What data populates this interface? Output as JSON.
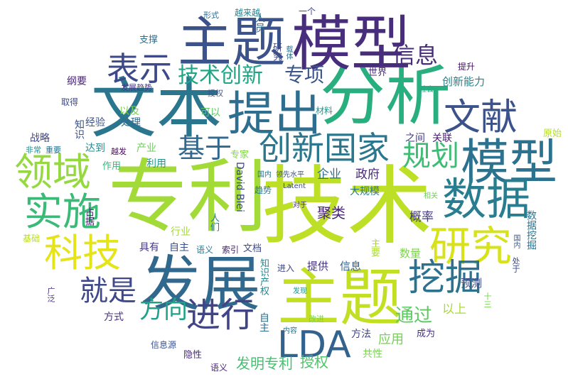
{
  "title": "",
  "words": [
    {
      "text": "专利",
      "color": "#a2da37"
    },
    {
      "text": "技术",
      "color": "#bddf26"
    },
    {
      "text": "文本",
      "color": "#2a768e"
    },
    {
      "text": "分析",
      "color": "#29af7f"
    },
    {
      "text": "主题",
      "color": "#3b528b"
    },
    {
      "text": "模型",
      "color": "#472d7b"
    },
    {
      "text": "模型",
      "color": "#2c728e"
    },
    {
      "text": "主题",
      "color": "#c2df23"
    },
    {
      "text": "发展",
      "color": "#31688e"
    },
    {
      "text": "提出",
      "color": "#2e6e8e"
    },
    {
      "text": "数据",
      "color": "#287d8e"
    },
    {
      "text": "研究",
      "color": "#d8e219"
    },
    {
      "text": "创新国家",
      "color": "#2a778e"
    },
    {
      "text": "领域",
      "color": "#95d840"
    },
    {
      "text": "科技",
      "color": "#e5e419"
    },
    {
      "text": "实施",
      "color": "#3aba76"
    },
    {
      "text": "表示",
      "color": "#3e4989"
    },
    {
      "text": "文献",
      "color": "#3b528b"
    },
    {
      "text": "挖掘",
      "color": "#2c728e"
    },
    {
      "text": "进行",
      "color": "#414487"
    },
    {
      "text": "LDA",
      "color": "#33638d"
    },
    {
      "text": "基于",
      "color": "#31688e"
    },
    {
      "text": "规划",
      "color": "#3dbc74"
    },
    {
      "text": "就是",
      "color": "#3f4889"
    },
    {
      "text": "方向",
      "color": "#1fa188"
    },
    {
      "text": "信息",
      "color": "#472c7a"
    },
    {
      "text": "技术创新",
      "color": "#20a486"
    },
    {
      "text": "专项",
      "color": "#3a548c"
    },
    {
      "text": "通过",
      "color": "#5ec962"
    },
    {
      "text": "发明专利",
      "color": "#45bf70"
    },
    {
      "text": "授权",
      "color": "#4ec36b"
    },
    {
      "text": "以上",
      "color": "#a8db34"
    },
    {
      "text": "预测",
      "color": "#3e4a89"
    },
    {
      "text": "应用",
      "color": "#75d054"
    },
    {
      "text": "方法",
      "color": "#404588"
    },
    {
      "text": "共性",
      "color": "#7ad151"
    },
    {
      "text": "成为",
      "color": "#46327e"
    },
    {
      "text": "提供",
      "color": "#46337f"
    },
    {
      "text": "信息",
      "color": "#355f8d"
    },
    {
      "text": "聚类",
      "color": "#482475"
    },
    {
      "text": "概率",
      "color": "#443983"
    },
    {
      "text": "企业",
      "color": "#2e6e8e"
    },
    {
      "text": "政府",
      "color": "#482878"
    },
    {
      "text": "大规模",
      "color": "#2a778e"
    },
    {
      "text": "数量",
      "color": "#7fd34e"
    },
    {
      "text": "主要",
      "color": "#addc30"
    },
    {
      "text": "关联",
      "color": "#482173"
    },
    {
      "text": "之间",
      "color": "#433e85"
    },
    {
      "text": "原始",
      "color": "#b5de2b"
    },
    {
      "text": "创新能力",
      "color": "#26828e"
    },
    {
      "text": "世界",
      "color": "#482979"
    },
    {
      "text": "提升",
      "color": "#471063"
    },
    {
      "text": "社会",
      "color": "#22a884"
    },
    {
      "text": "材料",
      "color": "#21918c"
    },
    {
      "text": "以及",
      "color": "#7ad151"
    },
    {
      "text": "可以",
      "color": "#5ec962"
    },
    {
      "text": "经验",
      "color": "#3b528b"
    },
    {
      "text": "处理",
      "color": "#31688e"
    },
    {
      "text": "战略",
      "color": "#404688"
    },
    {
      "text": "非常",
      "color": "#21918c"
    },
    {
      "text": "重要",
      "color": "#2c728e"
    },
    {
      "text": "达到",
      "color": "#238a8d"
    },
    {
      "text": "越发",
      "color": "#46085c"
    },
    {
      "text": "产业",
      "color": "#6ccd5a"
    },
    {
      "text": "作用",
      "color": "#37b878"
    },
    {
      "text": "利用",
      "color": "#1f968b"
    },
    {
      "text": "专家",
      "color": "#84d44b"
    },
    {
      "text": "行业",
      "color": "#a5db36"
    },
    {
      "text": "具有",
      "color": "#443983"
    },
    {
      "text": "自主",
      "color": "#3b528b"
    },
    {
      "text": "语义",
      "color": "#2a788e"
    },
    {
      "text": "索引",
      "color": "#482475"
    },
    {
      "text": "文档",
      "color": "#3e4989"
    },
    {
      "text": "进入",
      "color": "#3f4788"
    },
    {
      "text": "发现",
      "color": "#21918c"
    },
    {
      "text": "方式",
      "color": "#46327e"
    },
    {
      "text": "信息源",
      "color": "#3b528b"
    },
    {
      "text": "隐性",
      "color": "#472c7a"
    },
    {
      "text": "语义",
      "color": "#482677"
    },
    {
      "text": "内容",
      "color": "#2c728e"
    },
    {
      "text": "改进",
      "color": "#7ad151"
    },
    {
      "text": "趋势",
      "color": "#2a788e"
    },
    {
      "text": "纲要",
      "color": "#482475"
    },
    {
      "text": "取得",
      "color": "#3e4a89"
    },
    {
      "text": "发展趋势",
      "color": "#443983"
    },
    {
      "text": "授权",
      "color": "#3b528b"
    },
    {
      "text": "支撑",
      "color": "#2d708e"
    },
    {
      "text": "形式",
      "color": "#31688e"
    },
    {
      "text": "越来越",
      "color": "#26828e"
    },
    {
      "text": "一个",
      "color": "#3e4989"
    },
    {
      "text": "国内",
      "color": "#2c728e"
    },
    {
      "text": "领先水平",
      "color": "#3b528b"
    },
    {
      "text": "Latent",
      "color": "#3e4989"
    },
    {
      "text": "对于",
      "color": "#472c7a"
    },
    {
      "text": "相关",
      "color": "#70cf57"
    },
    {
      "text": "基础",
      "color": "#b8de29"
    },
    {
      "text": "广泛",
      "color": "#46327e"
    },
    {
      "text": "知识",
      "color": "#3b528b"
    },
    {
      "text": "人员",
      "color": "#31688e"
    },
    {
      "text": "研究",
      "color": "#3e4989"
    },
    {
      "text": "载体",
      "color": "#2c728e"
    },
    {
      "text": "人们",
      "color": "#2a788e"
    },
    {
      "text": "David Blei",
      "color": "#3e4a89"
    },
    {
      "text": "知识产权",
      "color": "#25858e"
    },
    {
      "text": "自主",
      "color": "#2c728e"
    },
    {
      "text": "数据挖掘",
      "color": "#2c728e"
    },
    {
      "text": "国内",
      "color": "#39568c"
    },
    {
      "text": "处于",
      "color": "#3e4989"
    },
    {
      "text": "占据",
      "color": "#482475"
    },
    {
      "text": "十三",
      "color": "#7ad151"
    }
  ]
}
